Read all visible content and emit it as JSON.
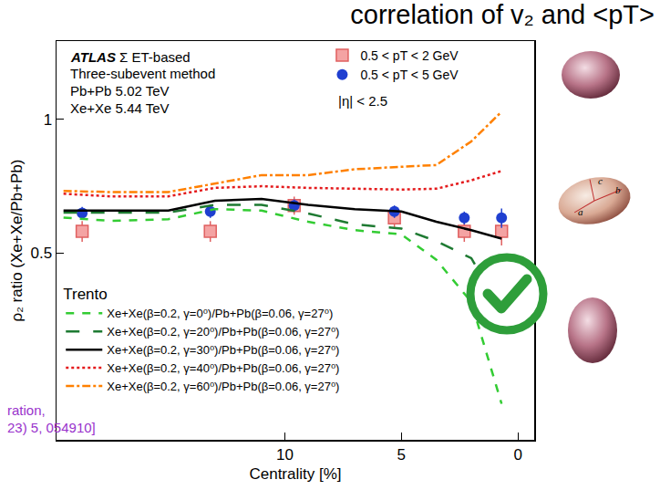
{
  "chart_data": {
    "type": "scatter",
    "title": "correlation of v₂ and <pT>",
    "x_label": "Centrality [%]",
    "y_label": "ρ₂ ratio (Xe+Xe/Pb+Pb)",
    "log": "y",
    "xlim": [
      19.8,
      -0.7
    ],
    "xticks": [
      10,
      5,
      0
    ],
    "ylim": [
      0.19,
      1.5
    ],
    "yticks": [
      0.5,
      1
    ],
    "annotations": [
      "ATLAS",
      "Σ ET-based",
      "Three-subevent method",
      "Pb+Pb 5.02 TeV",
      "Xe+Xe 5.44 TeV",
      "|η| < 2.5"
    ],
    "citation": [
      "ration,",
      "23) 5, 054910]"
    ],
    "legend_title": "Trento",
    "nucleus_axis_labels": [
      "a",
      "b",
      "c"
    ],
    "series": [
      {
        "name": "0.5 < pT < 2 GeV",
        "type": "scatter",
        "marker": "square",
        "color": "#f4a3a3",
        "legend": "top right",
        "x": [
          18.7,
          13.2,
          9.6,
          5.3,
          2.3,
          0.7
        ],
        "values": [
          0.56,
          0.56,
          0.64,
          0.6,
          0.56,
          0.56
        ],
        "errors": [
          0.03,
          0.03,
          0.03,
          0.03,
          0.03,
          0.04
        ]
      },
      {
        "name": "0.5 < pT < 5 GeV",
        "type": "scatter",
        "marker": "circle",
        "color": "#1f3fd0",
        "legend": "top right",
        "x": [
          18.7,
          13.2,
          9.6,
          5.3,
          2.3,
          0.7
        ],
        "values": [
          0.615,
          0.62,
          0.64,
          0.62,
          0.6,
          0.6
        ],
        "errors": [
          0.02,
          0.02,
          0.02,
          0.02,
          0.02,
          0.03
        ]
      },
      {
        "name": "Xe+Xe(β=0.2, γ=0⁰)/Pb+Pb(β=0.06, γ=27⁰)",
        "type": "line",
        "line_style": "dash",
        "color": "#33cc33",
        "legend": "bottom left",
        "x": [
          19.5,
          17.5,
          15,
          13,
          11,
          9,
          7,
          5,
          3.5,
          2,
          0.7
        ],
        "values": [
          0.601,
          0.591,
          0.596,
          0.628,
          0.623,
          0.588,
          0.563,
          0.551,
          0.483,
          0.388,
          0.229
        ]
      },
      {
        "name": "Xe+Xe(β=0.2, γ=20⁰)/Pb+Pb(β=0.06, γ=27⁰)",
        "type": "line",
        "line_style": "longdash",
        "color": "#1e7a32",
        "legend": "bottom left",
        "x": [
          19.5,
          17.5,
          15,
          13,
          11,
          9,
          7,
          5,
          3.5,
          2,
          0.7
        ],
        "values": [
          0.617,
          0.617,
          0.617,
          0.642,
          0.642,
          0.614,
          0.58,
          0.568,
          0.532,
          0.487,
          0.371
        ]
      },
      {
        "name": "Xe+Xe(β=0.2, γ=30⁰)/Pb+Pb(β=0.06, γ=27⁰)",
        "type": "line",
        "line_style": "solid",
        "color": "#000000",
        "legend": "bottom left",
        "x": [
          19.5,
          17.5,
          15,
          13,
          11,
          9,
          7,
          5,
          3.5,
          2,
          0.7
        ],
        "values": [
          0.623,
          0.623,
          0.623,
          0.656,
          0.662,
          0.642,
          0.628,
          0.62,
          0.588,
          0.563,
          0.539
        ]
      },
      {
        "name": "Xe+Xe(β=0.2, γ=40⁰)/Pb+Pb(β=0.06, γ=27⁰)",
        "type": "line",
        "line_style": "dot",
        "color": "#e41a1c",
        "legend": "bottom left",
        "x": [
          19.5,
          17.5,
          15,
          13,
          11,
          9,
          7,
          5,
          3.5,
          2,
          0.7
        ],
        "values": [
          0.68,
          0.671,
          0.671,
          0.701,
          0.707,
          0.701,
          0.698,
          0.695,
          0.698,
          0.729,
          0.765
        ]
      },
      {
        "name": "Xe+Xe(β=0.2, γ=60⁰)/Pb+Pb(β=0.06, γ=27⁰)",
        "type": "line",
        "line_style": "dashdot",
        "color": "#ff8000",
        "legend": "bottom left",
        "x": [
          19.5,
          17.5,
          15,
          13,
          11,
          9,
          7,
          5,
          3.5,
          2,
          0.7
        ],
        "values": [
          0.69,
          0.686,
          0.686,
          0.717,
          0.749,
          0.749,
          0.772,
          0.782,
          0.789,
          0.892,
          1.04
        ]
      }
    ]
  }
}
